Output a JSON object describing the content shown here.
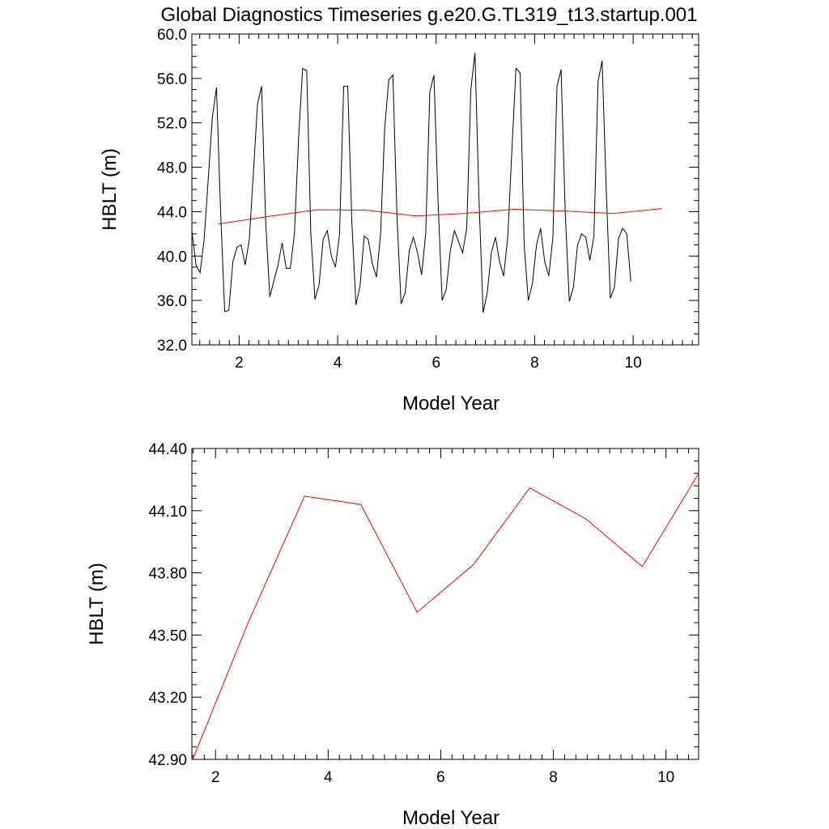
{
  "title": "Global Diagnostics Timeseries g.e20.G.TL319_t13.startup.001",
  "chart_data": [
    {
      "type": "line",
      "xlabel": "Model Year",
      "ylabel": "HBLT (m)",
      "xlim": [
        1.04,
        11.33
      ],
      "ylim": [
        32.0,
        60.0
      ],
      "x_ticks": [
        2,
        4,
        6,
        8,
        10
      ],
      "y_ticks": [
        32.0,
        36.0,
        40.0,
        44.0,
        48.0,
        52.0,
        56.0,
        60.0
      ],
      "y_tick_labels": [
        "32.0",
        "36.0",
        "40.0",
        "44.0",
        "48.0",
        "52.0",
        "56.0",
        "60.0"
      ],
      "series": [
        {
          "color": "#000000",
          "x_start": 1.04,
          "x_step": 0.0833,
          "values": [
            42.3,
            39.2,
            38.5,
            41.5,
            47.0,
            52.5,
            55.2,
            44.0,
            35.0,
            35.1,
            39.5,
            40.8,
            41.0,
            39.2,
            41.5,
            47.5,
            53.7,
            55.3,
            43.0,
            36.3,
            37.8,
            39.2,
            41.2,
            38.9,
            38.9,
            42.0,
            50.5,
            56.9,
            56.7,
            42.0,
            36.1,
            37.4,
            41.5,
            42.3,
            40.0,
            39.0,
            42.0,
            55.3,
            55.3,
            43.0,
            35.6,
            37.3,
            41.8,
            41.5,
            39.3,
            38.1,
            42.0,
            51.5,
            55.9,
            56.3,
            43.5,
            35.7,
            36.7,
            40.5,
            41.7,
            40.3,
            38.3,
            42.0,
            54.8,
            56.3,
            45.0,
            36.0,
            37.0,
            40.5,
            42.3,
            41.3,
            40.3,
            42.5,
            55.0,
            58.3,
            45.0,
            34.9,
            36.7,
            40.3,
            41.7,
            39.5,
            38.2,
            41.7,
            49.5,
            56.9,
            56.5,
            41.0,
            36.0,
            37.5,
            41.0,
            42.5,
            39.5,
            38.2,
            41.7,
            55.3,
            56.8,
            44.0,
            35.9,
            37.2,
            41.0,
            42.0,
            41.7,
            39.6,
            41.8,
            55.7,
            57.6,
            46.0,
            36.2,
            37.2,
            41.6,
            42.5,
            42.0,
            37.7
          ]
        },
        {
          "color": "#ff0000",
          "x": [
            1.58,
            2.58,
            3.58,
            4.58,
            5.58,
            6.58,
            7.58,
            8.58,
            9.58,
            10.58
          ],
          "values": [
            42.89,
            43.56,
            44.17,
            44.13,
            43.61,
            43.84,
            44.21,
            44.06,
            43.83,
            44.28
          ]
        }
      ]
    },
    {
      "type": "line",
      "xlabel": "Model Year",
      "ylabel": "HBLT (m)",
      "xlim": [
        1.58,
        10.58
      ],
      "ylim": [
        42.9,
        44.4
      ],
      "x_ticks": [
        2,
        4,
        6,
        8,
        10
      ],
      "y_ticks": [
        42.9,
        43.2,
        43.5,
        43.8,
        44.1,
        44.4
      ],
      "y_tick_labels": [
        "42.90",
        "43.20",
        "43.50",
        "43.80",
        "44.10",
        "44.40"
      ],
      "series": [
        {
          "color": "#ff0000",
          "x": [
            1.58,
            2.58,
            3.58,
            4.58,
            5.58,
            6.58,
            7.58,
            8.58,
            9.58,
            10.58
          ],
          "values": [
            42.89,
            43.56,
            44.17,
            44.13,
            43.61,
            43.84,
            44.21,
            44.06,
            43.83,
            44.28
          ]
        }
      ]
    }
  ]
}
